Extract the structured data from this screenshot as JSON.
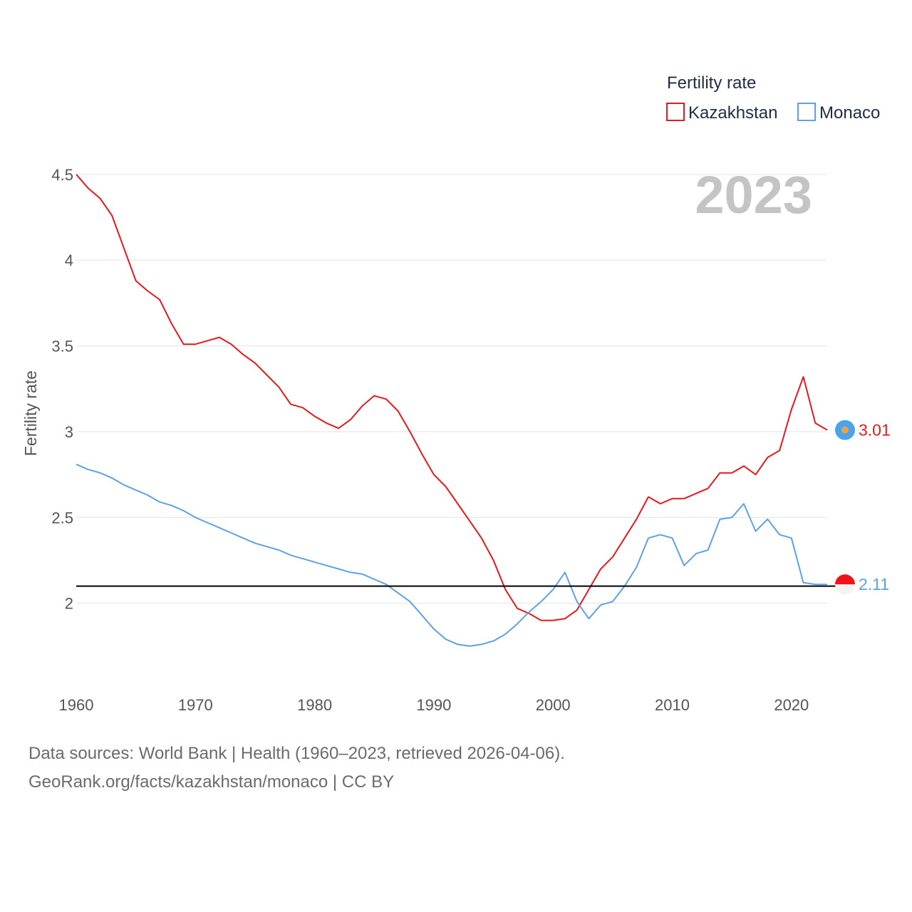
{
  "chart_data": {
    "type": "line",
    "legend_title": "Fertility rate",
    "ylabel": "Fertility rate",
    "year_watermark": "2023",
    "xlim": [
      1960,
      2023
    ],
    "ylim": [
      1.55,
      4.52
    ],
    "xticks": [
      1960,
      1970,
      1980,
      1990,
      2000,
      2010,
      2020
    ],
    "yticks": [
      2,
      2.5,
      3,
      3.5,
      4,
      4.5
    ],
    "ytick_labels": [
      "2",
      "2.5",
      "3",
      "3.5",
      "4",
      "4.5"
    ],
    "reference_line": 2.1,
    "series": [
      {
        "name": "Kazakhstan",
        "color": "#e8191c",
        "end_label": "3.01",
        "x": [
          1960,
          1961,
          1962,
          1963,
          1964,
          1965,
          1966,
          1967,
          1968,
          1969,
          1970,
          1971,
          1972,
          1973,
          1974,
          1975,
          1976,
          1977,
          1978,
          1979,
          1980,
          1981,
          1982,
          1983,
          1984,
          1985,
          1986,
          1987,
          1988,
          1989,
          1990,
          1991,
          1992,
          1993,
          1994,
          1995,
          1996,
          1997,
          1998,
          1999,
          2000,
          2001,
          2002,
          2003,
          2004,
          2005,
          2006,
          2007,
          2008,
          2009,
          2010,
          2011,
          2012,
          2013,
          2014,
          2015,
          2016,
          2017,
          2018,
          2019,
          2020,
          2021,
          2022,
          2023
        ],
        "values": [
          4.5,
          4.42,
          4.36,
          4.26,
          4.07,
          3.88,
          3.82,
          3.77,
          3.63,
          3.51,
          3.51,
          3.53,
          3.55,
          3.51,
          3.45,
          3.4,
          3.33,
          3.26,
          3.16,
          3.14,
          3.09,
          3.05,
          3.02,
          3.07,
          3.15,
          3.21,
          3.19,
          3.12,
          3.0,
          2.87,
          2.75,
          2.68,
          2.58,
          2.48,
          2.38,
          2.25,
          2.08,
          1.97,
          1.94,
          1.9,
          1.9,
          1.91,
          1.96,
          2.08,
          2.2,
          2.27,
          2.38,
          2.49,
          2.62,
          2.58,
          2.61,
          2.61,
          2.64,
          2.67,
          2.76,
          2.76,
          2.8,
          2.75,
          2.85,
          2.89,
          3.13,
          3.32,
          3.05,
          3.01
        ]
      },
      {
        "name": "Monaco",
        "color": "#5ba3e6",
        "end_label": "2.11",
        "x": [
          1960,
          1961,
          1962,
          1963,
          1964,
          1965,
          1966,
          1967,
          1968,
          1969,
          1970,
          1971,
          1972,
          1973,
          1974,
          1975,
          1976,
          1977,
          1978,
          1979,
          1980,
          1981,
          1982,
          1983,
          1984,
          1985,
          1986,
          1987,
          1988,
          1989,
          1990,
          1991,
          1992,
          1993,
          1994,
          1995,
          1996,
          1997,
          1998,
          1999,
          2000,
          2001,
          2002,
          2003,
          2004,
          2005,
          2006,
          2007,
          2008,
          2009,
          2010,
          2011,
          2012,
          2013,
          2014,
          2015,
          2016,
          2017,
          2018,
          2019,
          2020,
          2021,
          2022,
          2023
        ],
        "values": [
          2.81,
          2.78,
          2.76,
          2.73,
          2.69,
          2.66,
          2.63,
          2.59,
          2.57,
          2.54,
          2.5,
          2.47,
          2.44,
          2.41,
          2.38,
          2.35,
          2.33,
          2.31,
          2.28,
          2.26,
          2.24,
          2.22,
          2.2,
          2.18,
          2.17,
          2.14,
          2.11,
          2.06,
          2.01,
          1.93,
          1.85,
          1.79,
          1.76,
          1.75,
          1.76,
          1.78,
          1.82,
          1.88,
          1.95,
          2.01,
          2.08,
          2.18,
          2.01,
          1.91,
          1.99,
          2.01,
          2.1,
          2.21,
          2.38,
          2.4,
          2.38,
          2.22,
          2.29,
          2.31,
          2.49,
          2.5,
          2.58,
          2.42,
          2.49,
          2.4,
          2.38,
          2.12,
          2.11,
          2.11
        ]
      }
    ]
  },
  "footer": {
    "source_line": "Data sources: World Bank | Health (1960–2023, retrieved 2026-04-06).",
    "credit_line": "GeoRank.org/facts/kazakhstan/monaco | CC BY"
  }
}
